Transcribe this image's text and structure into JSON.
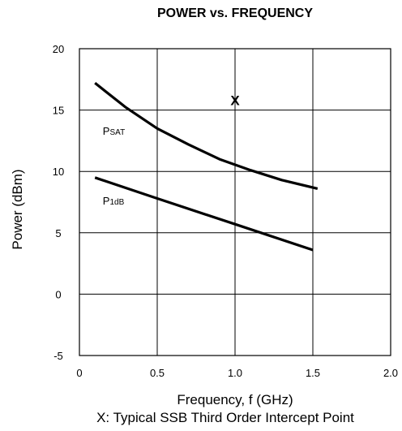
{
  "chart_data": {
    "type": "line",
    "title": "POWER vs. FREQUENCY",
    "xlabel": "Frequency, f (GHz)",
    "ylabel": "Power (dBm)",
    "note": "X: Typical SSB Third Order Intercept Point",
    "xlim": [
      0,
      2.0
    ],
    "ylim": [
      -5,
      20
    ],
    "x_ticks": [
      "0",
      "0.5",
      "1.0",
      "1.5",
      "2.0"
    ],
    "y_ticks": [
      "20",
      "15",
      "10",
      "5",
      "0",
      "-5"
    ],
    "grid": true,
    "series": [
      {
        "label_main": "P",
        "label_sub": "SAT",
        "x": [
          0.1,
          0.3,
          0.5,
          0.7,
          0.9,
          1.1,
          1.3,
          1.53
        ],
        "y": [
          17.2,
          15.2,
          13.5,
          12.2,
          11.0,
          10.1,
          9.3,
          8.6
        ]
      },
      {
        "label_main": "P",
        "label_sub": "1dB",
        "x": [
          0.1,
          0.5,
          1.0,
          1.5
        ],
        "y": [
          9.5,
          7.8,
          5.7,
          3.6
        ]
      }
    ],
    "markers": [
      {
        "symbol": "X",
        "x": 1.0,
        "y": 15.8
      }
    ]
  }
}
